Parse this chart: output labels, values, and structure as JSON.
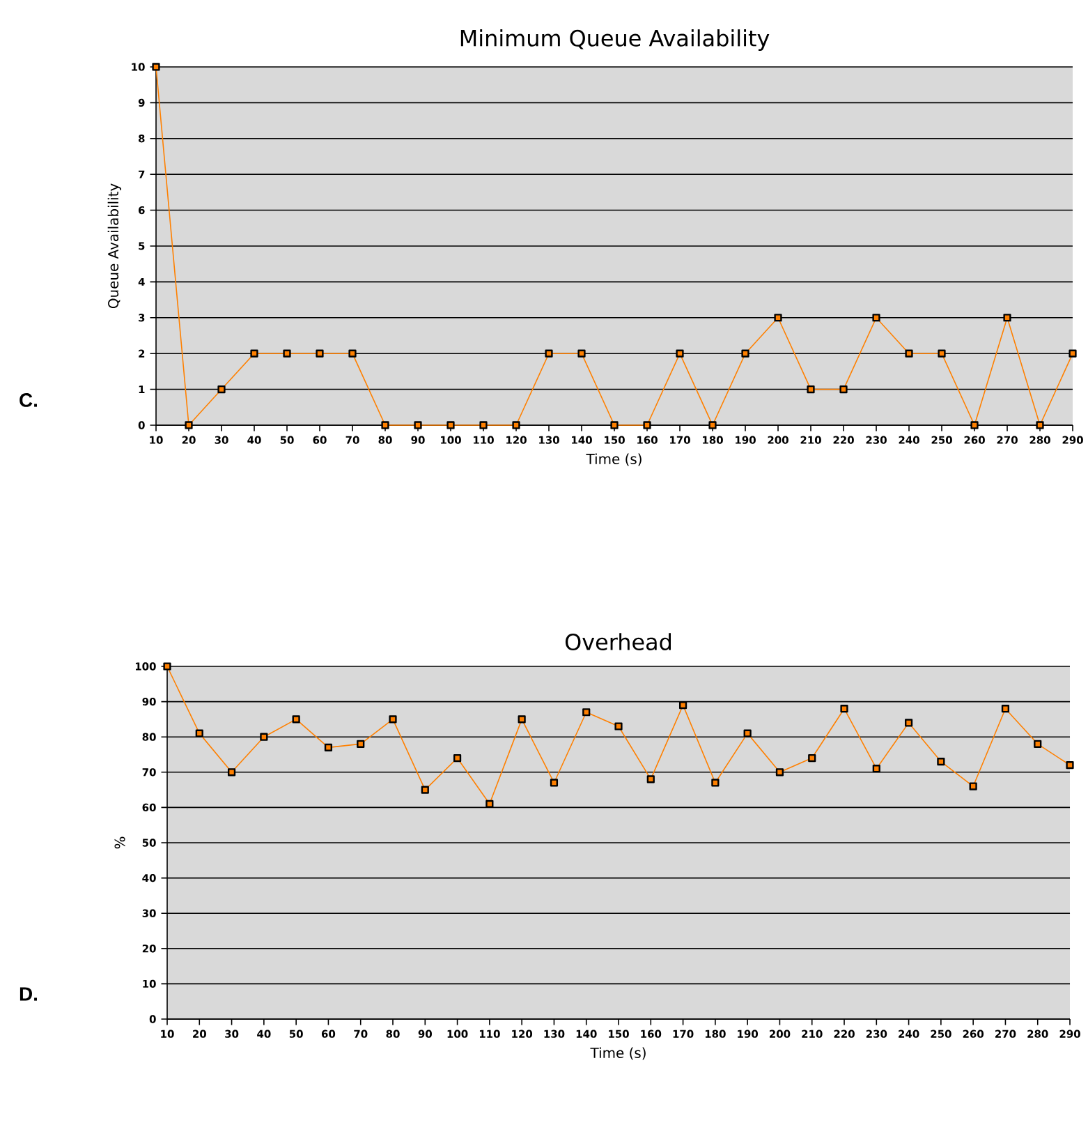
{
  "chart_data": [
    {
      "type": "line",
      "title": "Minimum Queue Availability",
      "xlabel": "Time (s)",
      "ylabel": "Queue Availability",
      "annotations": [
        "C."
      ],
      "x": [
        10,
        20,
        30,
        40,
        50,
        60,
        70,
        80,
        90,
        100,
        110,
        120,
        130,
        140,
        150,
        160,
        170,
        180,
        190,
        200,
        210,
        220,
        230,
        240,
        250,
        260,
        270,
        280,
        290
      ],
      "series": [
        {
          "color": "#ff8000",
          "values": [
            10,
            0,
            1,
            2,
            2,
            2,
            2,
            0,
            0,
            0,
            0,
            0,
            2,
            2,
            0,
            0,
            2,
            0,
            2,
            3,
            1,
            1,
            3,
            2,
            2,
            0,
            3,
            0,
            2
          ]
        }
      ],
      "xlim": [
        10,
        290
      ],
      "ylim": [
        0,
        10
      ],
      "xticks": [
        10,
        20,
        30,
        40,
        50,
        60,
        70,
        80,
        90,
        100,
        110,
        120,
        130,
        140,
        150,
        160,
        170,
        180,
        190,
        200,
        210,
        220,
        230,
        240,
        250,
        260,
        270,
        280,
        290
      ],
      "yticks": [
        0,
        1,
        2,
        3,
        4,
        5,
        6,
        7,
        8,
        9,
        10
      ],
      "grid": "y",
      "marker": "square",
      "line_style": "solid"
    },
    {
      "type": "line",
      "title": "Overhead",
      "xlabel": "Time (s)",
      "ylabel": "%",
      "annotations": [
        "D."
      ],
      "x": [
        10,
        20,
        30,
        40,
        50,
        60,
        70,
        80,
        90,
        100,
        110,
        120,
        130,
        140,
        150,
        160,
        170,
        180,
        190,
        200,
        210,
        220,
        230,
        240,
        250,
        260,
        270,
        280,
        290
      ],
      "series": [
        {
          "color": "#ff8000",
          "values": [
            100,
            81,
            70,
            80,
            85,
            77,
            78,
            85,
            65,
            74,
            61,
            85,
            67,
            87,
            83,
            68,
            89,
            67,
            81,
            70,
            74,
            88,
            71,
            84,
            73,
            66,
            88,
            78,
            72
          ]
        }
      ],
      "xlim": [
        10,
        290
      ],
      "ylim": [
        0,
        100
      ],
      "xticks": [
        10,
        20,
        30,
        40,
        50,
        60,
        70,
        80,
        90,
        100,
        110,
        120,
        130,
        140,
        150,
        160,
        170,
        180,
        190,
        200,
        210,
        220,
        230,
        240,
        250,
        260,
        270,
        280,
        290
      ],
      "yticks": [
        0,
        10,
        20,
        30,
        40,
        50,
        60,
        70,
        80,
        90,
        100
      ],
      "grid": "y",
      "marker": "square",
      "line_style": "solid"
    }
  ]
}
